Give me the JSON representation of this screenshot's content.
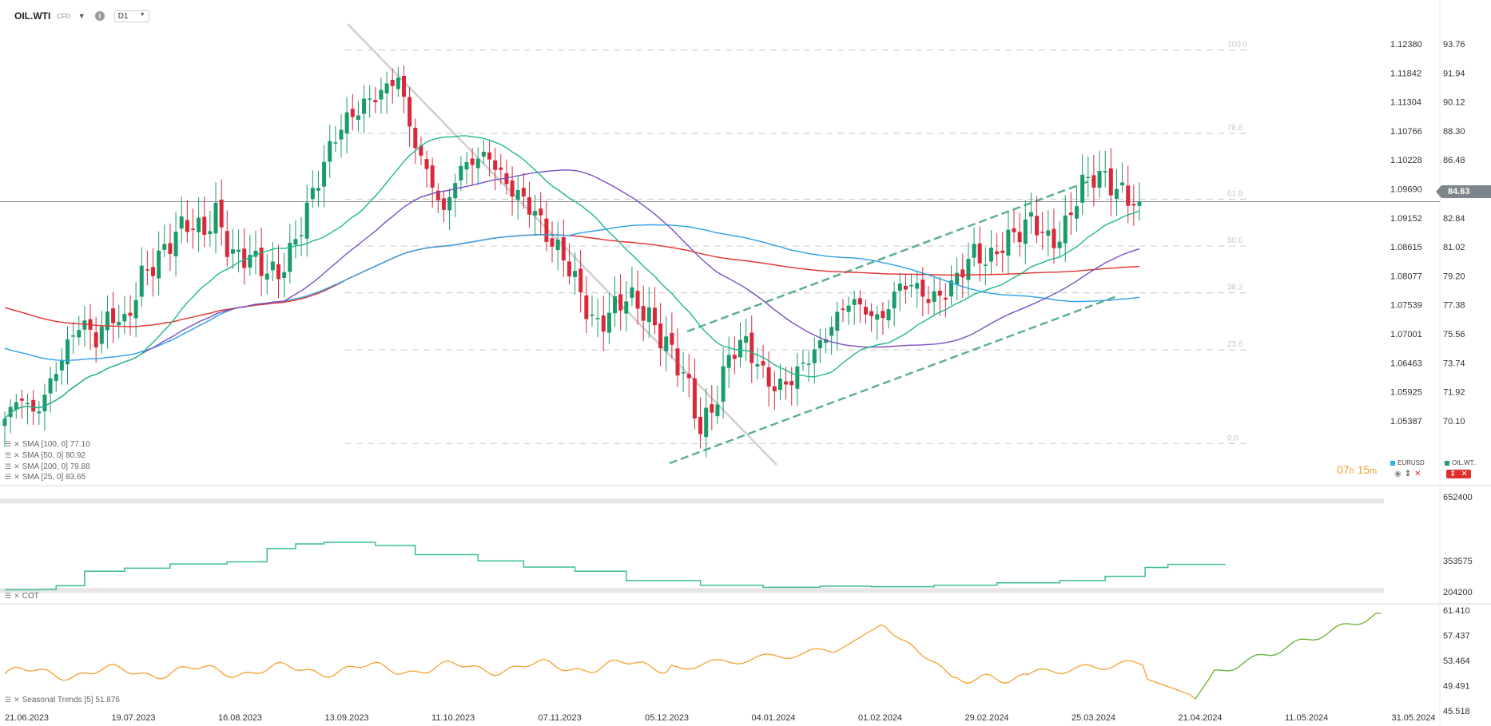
{
  "header": {
    "symbol": "OIL.WTI",
    "symbol_type": "CFD",
    "timeframe": "D1",
    "info_icon": "info-icon",
    "dropdown_icon": "chevron-down-icon"
  },
  "legend_main": [
    {
      "label": "SMA [100, 0] 77.10",
      "color": "#2b9fe6"
    },
    {
      "label": "SMA [50, 0] 80.92",
      "color": "#7b4fc4"
    },
    {
      "label": "SMA [200, 0] 79.88",
      "color": "#e0302c"
    },
    {
      "label": "SMA [25, 0] 83.65",
      "color": "#1fb88a"
    }
  ],
  "legend_cot": "COT",
  "legend_seasonal": "Seasonal  Trends [5] 51.876",
  "countdown": {
    "h": "07",
    "h_unit": "h",
    "m": "15",
    "m_unit": "m"
  },
  "chips": [
    {
      "label": "EURUSD",
      "color": "#2bb3e6"
    },
    {
      "label": "OIL.WT..",
      "color": "#1fa070"
    }
  ],
  "current_price": "84.63",
  "colors": {
    "up": "#1a9b6a",
    "down": "#d9283a",
    "sma25": "#1fb88a",
    "sma50": "#7b4fc4",
    "sma100": "#2b9fe6",
    "sma200": "#e0302c",
    "cot": "#3cbf8a",
    "seasonal_hist": "#f5a033",
    "seasonal_fore": "#66b030",
    "fib": "#d0d0d0",
    "channel": "#5bb08a"
  },
  "chart_data": {
    "type": "candlestick",
    "instrument": "OIL.WTI",
    "timeframe": "D1",
    "x_labels": [
      "21.06.2023",
      "19.07.2023",
      "16.08.2023",
      "13.09.2023",
      "11.10.2023",
      "07.11.2023",
      "05.12.2023",
      "04.01.2024",
      "01.02.2024",
      "29.02.2024",
      "25.03.2024",
      "21.04.2024",
      "11.05.2024",
      "31.05.2024"
    ],
    "y_axis_left_eurusd": [
      "1.12380",
      "1.11842",
      "1.11304",
      "1.10766",
      "1.10228",
      "1.09690",
      "1.09152",
      "1.08615",
      "1.08077",
      "1.07539",
      "1.07001",
      "1.06463",
      "1.05925",
      "1.05387"
    ],
    "y_axis_right_oil": [
      "93.76",
      "91.94",
      "90.12",
      "88.30",
      "86.48",
      "84.63",
      "82.84",
      "81.02",
      "79.20",
      "77.38",
      "75.56",
      "73.74",
      "71.92",
      "70.10"
    ],
    "y_range": [
      68.28,
      95.58
    ],
    "fib_levels": [
      {
        "label": "100.0",
        "value": 95.0
      },
      {
        "label": "78.6",
        "value": 89.3
      },
      {
        "label": "61.8",
        "value": 84.8
      },
      {
        "label": "50.0",
        "value": 81.6
      },
      {
        "label": "38.2",
        "value": 78.4
      },
      {
        "label": "23.6",
        "value": 74.5
      },
      {
        "label": "0.0",
        "value": 68.1
      }
    ],
    "close_path": [
      69.8,
      71.4,
      70.0,
      72.2,
      74.5,
      76.5,
      75.2,
      77.0,
      76.2,
      79.5,
      80.5,
      82.0,
      83.3,
      82.5,
      83.8,
      80.8,
      81.0,
      80.2,
      79.5,
      81.4,
      84.2,
      87.0,
      89.5,
      90.6,
      91.5,
      92.2,
      93.2,
      88.8,
      86.5,
      83.8,
      86.8,
      87.5,
      87.8,
      86.0,
      85.0,
      84.0,
      82.0,
      80.8,
      78.5,
      76.0,
      77.0,
      78.2,
      77.5,
      76.0,
      74.5,
      72.6,
      69.0,
      71.0,
      74.5,
      75.0,
      73.0,
      71.8,
      72.5,
      73.8,
      75.0,
      76.8,
      78.0,
      77.0,
      76.6,
      78.8,
      79.0,
      78.0,
      78.2,
      79.5,
      81.2,
      80.5,
      81.8,
      82.6,
      83.5,
      81.8,
      82.5,
      85.5,
      86.5,
      86.0,
      85.0,
      84.63
    ],
    "series": [
      {
        "name": "SMA [25, 0]",
        "value": 83.65
      },
      {
        "name": "SMA [50, 0]",
        "value": 80.92
      },
      {
        "name": "SMA [100, 0]",
        "value": 77.1
      },
      {
        "name": "SMA [200, 0]",
        "value": 79.88
      }
    ],
    "cot": {
      "name": "COT",
      "y_axis": [
        "652400",
        "353575",
        "204200"
      ],
      "steps": [
        [
          0,
          210000
        ],
        [
          6,
          212000
        ],
        [
          9,
          230000
        ],
        [
          14,
          300000
        ],
        [
          21,
          315000
        ],
        [
          29,
          335000
        ],
        [
          39,
          345000
        ],
        [
          46,
          410000
        ],
        [
          51,
          432000
        ],
        [
          56,
          440000
        ],
        [
          65,
          425000
        ],
        [
          72,
          380000
        ],
        [
          83,
          350000
        ],
        [
          91,
          320000
        ],
        [
          100,
          300000
        ],
        [
          109,
          255000
        ],
        [
          122,
          232000
        ],
        [
          133,
          222000
        ],
        [
          143,
          228000
        ],
        [
          152,
          225000
        ],
        [
          163,
          232000
        ],
        [
          174,
          244000
        ],
        [
          185,
          255000
        ],
        [
          193,
          275000
        ],
        [
          200,
          318000
        ],
        [
          204,
          333000
        ],
        [
          214,
          335000
        ]
      ],
      "bands": [
        [
          204200,
          218000
        ],
        [
          628000,
          652400
        ]
      ]
    },
    "seasonal": {
      "name": "Seasonal Trends [5]",
      "value": 51.876,
      "y_axis": [
        "61.410",
        "57.437",
        "53.464",
        "49.491",
        "45.518"
      ]
    }
  }
}
